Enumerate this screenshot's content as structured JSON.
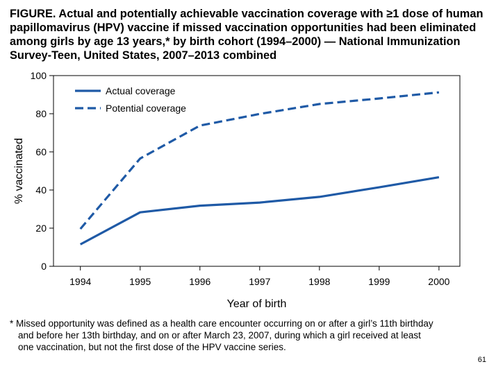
{
  "figure": {
    "title": "FIGURE. Actual and potentially achievable vaccination coverage with ≥1 dose of human papillomavirus (HPV) vaccine if missed vaccination opportunities had been eliminated among girls by age 13 years,* by birth cohort (1994–2000) — National Immunization Survey-Teen, United States, 2007–2013 combined",
    "footnote_lines": [
      "* Missed opportunity was defined as a health care encounter occurring on or after a girl’s 11th birthday",
      "and before her 13th birthday, and on or after March 23, 2007, during  which a girl received at least",
      "one vaccination, but not the first dose of the HPV vaccine series."
    ],
    "page_number": "61"
  },
  "chart_data": {
    "type": "line",
    "x": [
      1994,
      1995,
      1996,
      1997,
      1998,
      1999,
      2000
    ],
    "x_tick_labels": [
      "1994",
      "1995",
      "1996",
      "1997",
      "1998",
      "1999",
      "2000"
    ],
    "y_tick_labels": [
      "0",
      "20",
      "40",
      "60",
      "80",
      "100"
    ],
    "xlabel": "Year of birth",
    "ylabel": "% vaccinated",
    "ylim": [
      0,
      100
    ],
    "xlim": [
      1993.55,
      2000.35
    ],
    "grid": false,
    "legend_position": "top-left",
    "series": [
      {
        "name": "Actual coverage",
        "style": "solid",
        "color": "#1f5aa6",
        "values": [
          11.5,
          28.3,
          31.8,
          33.4,
          36.4,
          41.4,
          46.7
        ]
      },
      {
        "name": "Potential coverage",
        "style": "dashed",
        "color": "#1f5aa6",
        "values": [
          19.6,
          56.5,
          73.8,
          79.9,
          85.1,
          88.0,
          91.2
        ]
      }
    ]
  }
}
